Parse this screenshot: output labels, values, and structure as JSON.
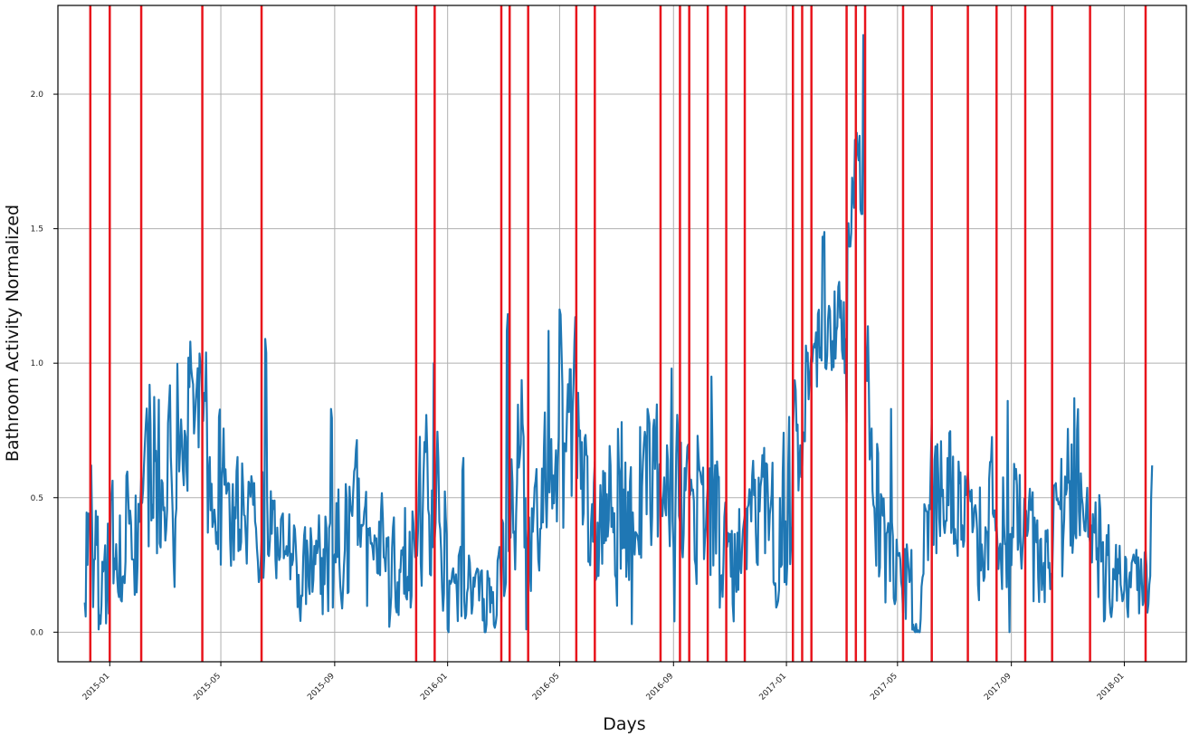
{
  "chart_data": {
    "type": "line",
    "title": "",
    "xlabel": "Days",
    "ylabel": "Bathroom Activity Normalized",
    "x_range": [
      "2014-11-06",
      "2018-03-09"
    ],
    "ylim": [
      -0.11,
      2.33
    ],
    "grid": true,
    "x_ticks": [
      {
        "date": "2015-01-01",
        "label": "2015-01"
      },
      {
        "date": "2015-05-01",
        "label": "2015-05"
      },
      {
        "date": "2015-09-01",
        "label": "2015-09"
      },
      {
        "date": "2016-01-01",
        "label": "2016-01"
      },
      {
        "date": "2016-05-01",
        "label": "2016-05"
      },
      {
        "date": "2016-09-01",
        "label": "2016-09"
      },
      {
        "date": "2017-01-01",
        "label": "2017-01"
      },
      {
        "date": "2017-05-01",
        "label": "2017-05"
      },
      {
        "date": "2017-09-01",
        "label": "2017-09"
      },
      {
        "date": "2018-01-01",
        "label": "2018-01"
      }
    ],
    "y_ticks": [
      {
        "value": 0.0,
        "label": "0.0"
      },
      {
        "value": 0.5,
        "label": "0.5"
      },
      {
        "value": 1.0,
        "label": "1.0"
      },
      {
        "value": 1.5,
        "label": "1.5"
      },
      {
        "value": 2.0,
        "label": "2.0"
      }
    ],
    "series": [
      {
        "color": "#1f77b4",
        "x": [
          "2014-12-05",
          "2014-12-20",
          "2015-01-05",
          "2015-01-20",
          "2015-02-05",
          "2015-02-20",
          "2015-03-05",
          "2015-03-20",
          "2015-04-05",
          "2015-04-20",
          "2015-05-05",
          "2015-05-20",
          "2015-06-05",
          "2015-06-20",
          "2015-07-05",
          "2015-07-20",
          "2015-08-05",
          "2015-08-20",
          "2015-09-05",
          "2015-09-20",
          "2015-10-05",
          "2015-10-20",
          "2015-11-05",
          "2015-11-20",
          "2015-12-05",
          "2015-12-20",
          "2016-01-05",
          "2016-01-20",
          "2016-02-05",
          "2016-02-20",
          "2016-03-05",
          "2016-03-20",
          "2016-04-05",
          "2016-04-20",
          "2016-05-05",
          "2016-05-20",
          "2016-06-05",
          "2016-06-20",
          "2016-07-05",
          "2016-07-20",
          "2016-08-05",
          "2016-08-20",
          "2016-09-05",
          "2016-09-20",
          "2016-10-05",
          "2016-10-20",
          "2016-11-05",
          "2016-11-20",
          "2016-12-05",
          "2016-12-20",
          "2017-01-05",
          "2017-01-20",
          "2017-02-05",
          "2017-02-20",
          "2017-03-05",
          "2017-03-20",
          "2017-04-05",
          "2017-04-20",
          "2017-05-05",
          "2017-05-20",
          "2017-06-05",
          "2017-06-20",
          "2017-07-05",
          "2017-07-20",
          "2017-08-05",
          "2017-08-20",
          "2017-09-05",
          "2017-09-20",
          "2017-10-05",
          "2017-10-20",
          "2017-11-05",
          "2017-11-20",
          "2017-12-05",
          "2017-12-20",
          "2018-01-05",
          "2018-01-20",
          "2018-01-31"
        ],
        "y": [
          0.35,
          0.25,
          0.2,
          0.4,
          0.45,
          0.55,
          0.55,
          0.7,
          0.75,
          0.6,
          0.5,
          0.45,
          0.45,
          0.4,
          0.3,
          0.25,
          0.25,
          0.25,
          0.3,
          0.4,
          0.3,
          0.25,
          0.25,
          0.3,
          0.5,
          0.55,
          0.15,
          0.2,
          0.15,
          0.1,
          0.3,
          0.65,
          0.35,
          0.6,
          0.75,
          0.7,
          0.35,
          0.45,
          0.5,
          0.45,
          0.55,
          0.55,
          0.65,
          0.4,
          0.55,
          0.35,
          0.2,
          0.4,
          0.45,
          0.4,
          0.5,
          0.85,
          1.05,
          1.1,
          1.15,
          1.95,
          0.3,
          0.3,
          0.2,
          0.15,
          0.45,
          0.55,
          0.5,
          0.45,
          0.35,
          0.35,
          0.55,
          0.3,
          0.25,
          0.4,
          0.55,
          0.55,
          0.25,
          0.25,
          0.25,
          0.2,
          0.3
        ],
        "noise": [
          0.15,
          0.13,
          0.14,
          0.16,
          0.2,
          0.22,
          0.22,
          0.22,
          0.22,
          0.2,
          0.17,
          0.15,
          0.15,
          0.13,
          0.12,
          0.12,
          0.12,
          0.12,
          0.15,
          0.15,
          0.13,
          0.13,
          0.12,
          0.15,
          0.2,
          0.2,
          0.08,
          0.1,
          0.08,
          0.07,
          0.15,
          0.22,
          0.15,
          0.22,
          0.25,
          0.22,
          0.14,
          0.15,
          0.18,
          0.18,
          0.18,
          0.2,
          0.2,
          0.16,
          0.2,
          0.16,
          0.1,
          0.14,
          0.16,
          0.16,
          0.2,
          0.15,
          0.12,
          0.12,
          0.14,
          0.18,
          0.14,
          0.14,
          0.1,
          0.1,
          0.14,
          0.14,
          0.14,
          0.15,
          0.15,
          0.15,
          0.2,
          0.12,
          0.1,
          0.15,
          0.17,
          0.15,
          0.1,
          0.1,
          0.1,
          0.1,
          0.15
        ],
        "peaks": [
          {
            "x": "2014-12-12",
            "y": 0.62
          },
          {
            "x": "2015-01-02",
            "y": 0.49
          },
          {
            "x": "2015-02-13",
            "y": 0.92
          },
          {
            "x": "2015-03-29",
            "y": 1.08
          },
          {
            "x": "2015-04-15",
            "y": 1.04
          },
          {
            "x": "2015-06-18",
            "y": 1.09
          },
          {
            "x": "2015-08-28",
            "y": 0.83
          },
          {
            "x": "2015-12-17",
            "y": 1.0
          },
          {
            "x": "2016-01-17",
            "y": 0.6
          },
          {
            "x": "2016-03-05",
            "y": 1.12
          },
          {
            "x": "2016-04-19",
            "y": 1.12
          },
          {
            "x": "2016-05-01",
            "y": 1.2
          },
          {
            "x": "2016-05-17",
            "y": 1.08
          },
          {
            "x": "2016-08-04",
            "y": 0.83
          },
          {
            "x": "2016-08-30",
            "y": 0.98
          },
          {
            "x": "2016-10-12",
            "y": 0.95
          },
          {
            "x": "2017-02-09",
            "y": 1.47
          },
          {
            "x": "2017-03-25",
            "y": 2.22
          },
          {
            "x": "2017-04-09",
            "y": 0.7
          },
          {
            "x": "2017-04-24",
            "y": 0.83
          },
          {
            "x": "2017-06-07",
            "y": 0.79
          },
          {
            "x": "2017-08-28",
            "y": 0.86
          },
          {
            "x": "2017-11-08",
            "y": 0.87
          },
          {
            "x": "2017-12-05",
            "y": 0.51
          },
          {
            "x": "2018-01-31",
            "y": 0.62
          },
          {
            "x": "2014-12-20",
            "y": 0.01
          },
          {
            "x": "2015-04-17",
            "y": 0.37
          },
          {
            "x": "2015-10-30",
            "y": 0.02
          },
          {
            "x": "2016-01-01",
            "y": 0.01
          },
          {
            "x": "2016-02-10",
            "y": 0.0
          },
          {
            "x": "2016-03-26",
            "y": 0.01
          },
          {
            "x": "2016-07-18",
            "y": 0.03
          },
          {
            "x": "2016-09-02",
            "y": 0.04
          },
          {
            "x": "2016-11-05",
            "y": 0.04
          },
          {
            "x": "2017-03-07",
            "y": 0.78
          },
          {
            "x": "2017-05-25",
            "y": 0.0
          },
          {
            "x": "2017-08-30",
            "y": 0.0
          },
          {
            "x": "2017-12-10",
            "y": 0.04
          }
        ]
      }
    ],
    "vlines": {
      "color": "#e8141c",
      "dates": [
        "2014-12-11",
        "2015-01-01",
        "2015-02-04",
        "2015-04-11",
        "2015-06-14",
        "2015-11-28",
        "2015-12-18",
        "2016-02-28",
        "2016-03-08",
        "2016-03-28",
        "2016-05-19",
        "2016-06-08",
        "2016-08-18",
        "2016-09-08",
        "2016-09-18",
        "2016-10-08",
        "2016-10-28",
        "2016-11-17",
        "2017-01-08",
        "2017-01-18",
        "2017-01-28",
        "2017-03-07",
        "2017-03-17",
        "2017-03-27",
        "2017-05-07",
        "2017-06-07",
        "2017-07-16",
        "2017-08-16",
        "2017-09-16",
        "2017-10-15",
        "2017-11-25",
        "2018-01-24"
      ]
    }
  }
}
